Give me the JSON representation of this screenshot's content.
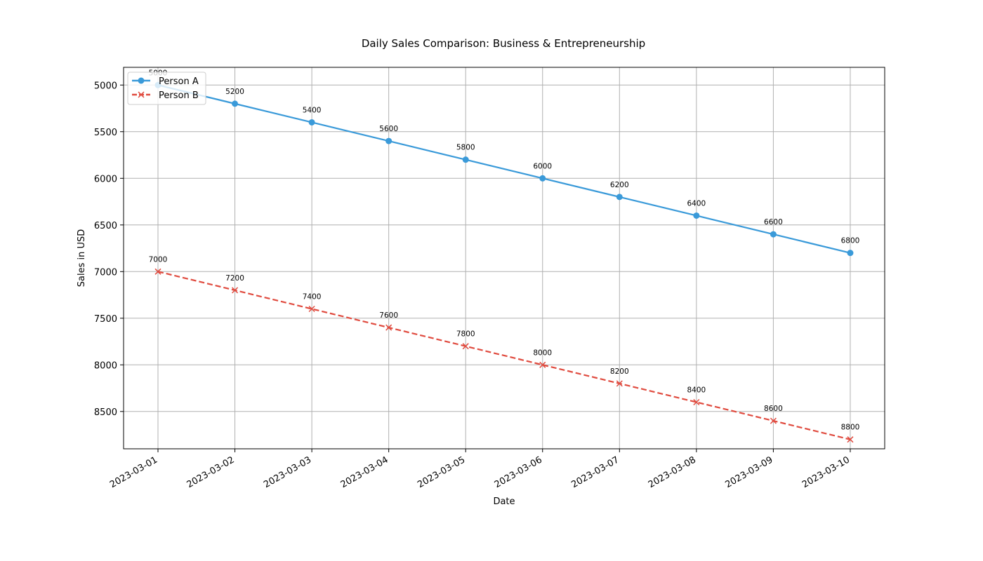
{
  "chart_data": {
    "type": "line",
    "title": "Daily Sales Comparison: Business & Entrepreneurship",
    "xlabel": "Date",
    "ylabel": "Sales in USD",
    "x": [
      "2023-03-01",
      "2023-03-02",
      "2023-03-03",
      "2023-03-04",
      "2023-03-05",
      "2023-03-06",
      "2023-03-07",
      "2023-03-08",
      "2023-03-09",
      "2023-03-10"
    ],
    "y_inverted": true,
    "ylim": [
      8900,
      4810
    ],
    "yticks": [
      5000,
      5500,
      6000,
      6500,
      7000,
      7500,
      8000,
      8500
    ],
    "grid": true,
    "legend_position": "top-left",
    "series": [
      {
        "name": "Person A",
        "values": [
          5000,
          5200,
          5400,
          5600,
          5800,
          6000,
          6200,
          6400,
          6600,
          6800
        ],
        "color": "#3a9ad9",
        "line_style": "solid",
        "marker": "circle"
      },
      {
        "name": "Person B",
        "values": [
          7000,
          7200,
          7400,
          7600,
          7800,
          8000,
          8200,
          8400,
          8600,
          8800
        ],
        "color": "#e04b3f",
        "line_style": "dashed",
        "marker": "x"
      }
    ]
  }
}
